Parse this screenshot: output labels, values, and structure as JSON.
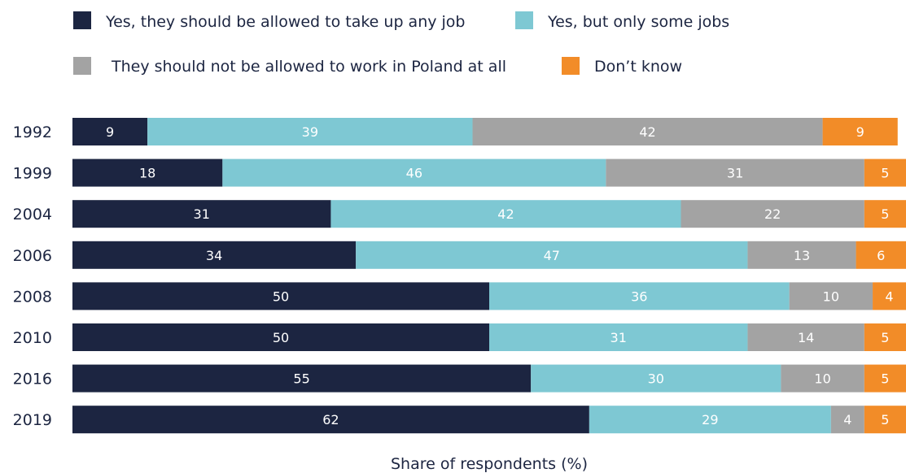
{
  "chart_data": {
    "type": "bar",
    "orientation": "horizontal",
    "stacked": true,
    "categories": [
      "1992",
      "1999",
      "2004",
      "2006",
      "2008",
      "2010",
      "2016",
      "2019"
    ],
    "series": [
      {
        "name": "Yes, they should be allowed to take up any job",
        "color": "#1c2541",
        "values": [
          9,
          18,
          31,
          34,
          50,
          50,
          55,
          62
        ]
      },
      {
        "name": "Yes, but only some jobs",
        "color": "#7ec8d3",
        "values": [
          39,
          46,
          42,
          47,
          36,
          31,
          30,
          29
        ]
      },
      {
        "name": "They should not be allowed to work in Poland at all",
        "color": "#a3a3a3",
        "values": [
          42,
          31,
          22,
          13,
          10,
          14,
          10,
          4
        ]
      },
      {
        "name": "Don’t know",
        "color": "#f28c28",
        "values": [
          9,
          5,
          5,
          6,
          4,
          5,
          5,
          5
        ]
      }
    ],
    "xlabel": "Share of respondents (%)",
    "ylabel": "",
    "xlim": [
      0,
      100
    ],
    "legend_position": "top",
    "grid": false
  }
}
